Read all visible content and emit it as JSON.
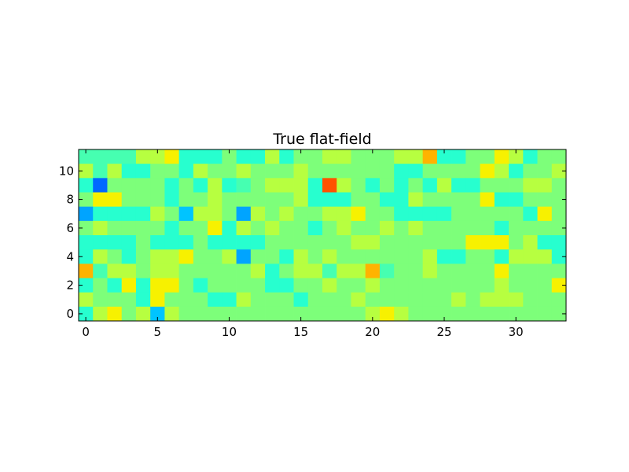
{
  "chart_data": {
    "type": "heatmap",
    "title": "True flat-field",
    "xlabel": "",
    "ylabel": "",
    "xlim": [
      -0.5,
      33.5
    ],
    "ylim": [
      -0.5,
      11.5
    ],
    "x_ticks": [
      0,
      5,
      10,
      15,
      20,
      25,
      30
    ],
    "y_ticks": [
      0,
      2,
      4,
      6,
      8,
      10
    ],
    "colormap": "jet",
    "value_range": [
      0,
      1
    ],
    "grid": false,
    "rows_top_to_bottom": [
      "hhhhccdaaabaacabbccbbbcceaabbdcabb",
      "chcaabbacbbcbbbcbbbbbbaabbbbdcabbc",
      "ajbbbbabacahbcccaicbababacaabbbccb",
      "bddbbbabbcbbbbbcaaabbaacbbbbdaabbb",
      "gaaaacbfccbgcbcbbccdbbaaaabbbbbadb",
      "bcbbbbabbdacbcbbabcbbcbcbbbbbabbbb",
      "aaaabaaabaaaabbbbbbccbbbbbbdddbcaa",
      "acbabccdbbcgbbacbcbbbbbbcaabbaccca",
      "ehccbccbbbbbcabcchccehbbcbbbbdbbbb",
      "abadaddbabbbbaabbcbbcbbbbbbbbcbbbd",
      "cbbbadbbbaacbbbabbbcbbbbbbcbcccbbb",
      "acdbcfcbbbbbbbbbbbbbcdcbbbbbbbbbbb"
    ],
    "palette": {
      "a": "#27ffcf",
      "b": "#7dff7a",
      "c": "#b7ff40",
      "d": "#f7f100",
      "e": "#ffb300",
      "f": "#00c4ff",
      "g": "#00a4ff",
      "h": "#46ffb1",
      "i": "#ff5200",
      "j": "#0068ff"
    }
  }
}
